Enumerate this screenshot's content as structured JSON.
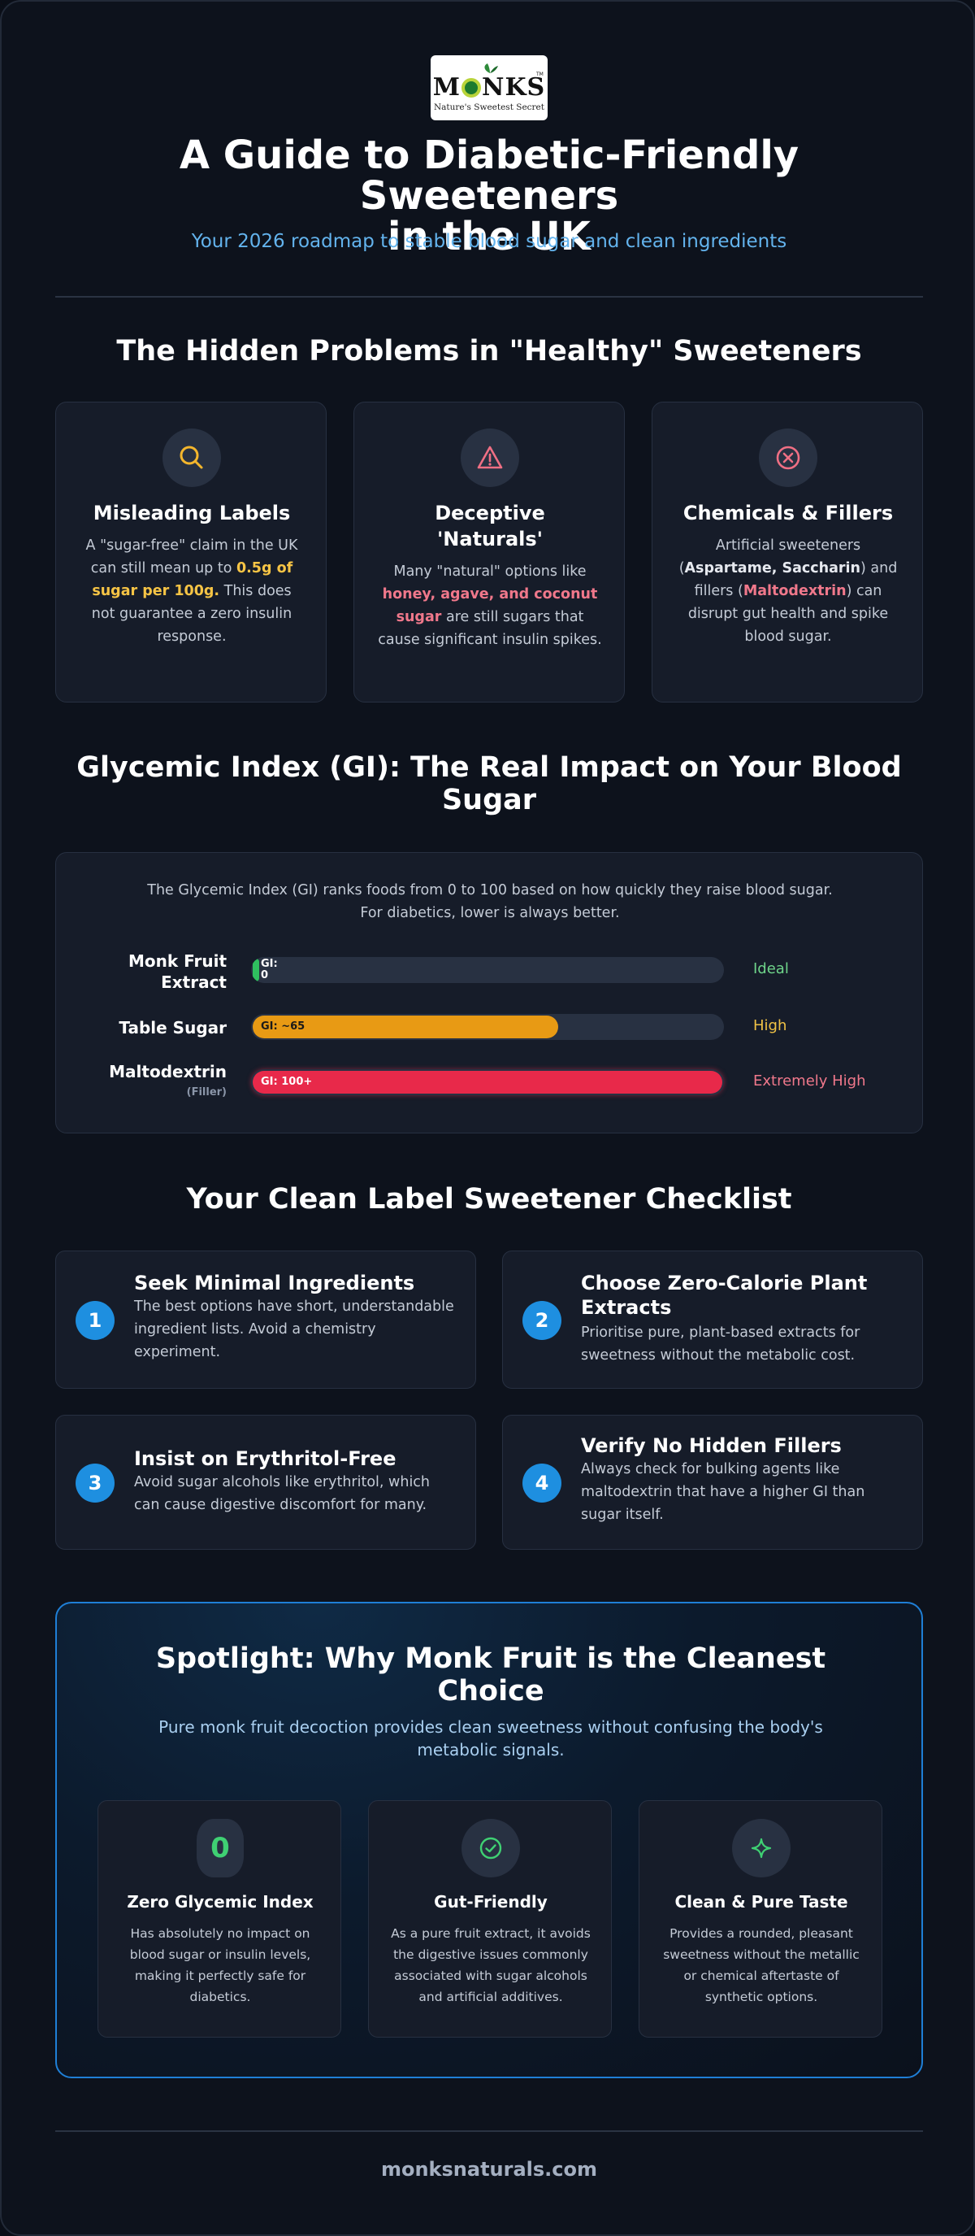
{
  "brand": {
    "logo_word_prefix": "M",
    "logo_word_suffix": "NKS",
    "logo_tm": "TM",
    "logo_tagline": "Nature's Sweetest Secret"
  },
  "header": {
    "title_line1": "A Guide to Diabetic-Friendly Sweeteners",
    "title_line2": "in the UK",
    "subtitle": "Your 2026 roadmap to stable blood sugar and clean ingredients"
  },
  "problems": {
    "title": "The Hidden Problems in \"Healthy\" Sweeteners",
    "cards": [
      {
        "icon": "search-icon",
        "title": "Misleading Labels",
        "text_parts": [
          "A \"sugar-free\" claim in the UK can still mean up to ",
          "0.5g of sugar per 100g.",
          " This does not guarantee a zero insulin response."
        ]
      },
      {
        "icon": "warning-icon",
        "title_line1": "Deceptive",
        "title_line2": "'Naturals'",
        "text_parts": [
          "Many \"natural\" options like ",
          "honey, agave, and coconut sugar",
          " are still sugars that cause significant insulin spikes."
        ]
      },
      {
        "icon": "close-circle-icon",
        "title": "Chemicals & Fillers",
        "text_parts": [
          "Artificial sweeteners (",
          "Aspartame, Saccharin",
          ") and fillers (",
          "Maltodextrin",
          ") can disrupt gut health and spike blood sugar."
        ]
      }
    ]
  },
  "gi": {
    "title_line1": "Glycemic Index (GI): The Real Impact on Your Blood",
    "title_line2": "Sugar",
    "intro_line1": "The Glycemic Index (GI) ranks foods from 0 to 100 based on how quickly they raise blood sugar.",
    "intro_line2": "For diabetics, lower is always better.",
    "rows": [
      {
        "label_line1": "Monk Fruit",
        "label_line2": "Extract",
        "bar_text": "GI: 0",
        "bar_line1": "GI:",
        "bar_line2": "0",
        "fill_fraction": 0.012,
        "color": "#2fbf5f",
        "status": "Ideal",
        "status_color": "#6fd48a"
      },
      {
        "label": "Table Sugar",
        "bar_text": "GI: ~65",
        "fill_fraction": 0.65,
        "color": "#e89a14",
        "status": "High",
        "status_color": "#f0c245"
      },
      {
        "label": "Maltodextrin",
        "sublabel": "(Filler)",
        "bar_text": "GI: 100+",
        "fill_fraction": 1.0,
        "color": "#e8294a",
        "status": "Extremely High",
        "status_color": "#f0788b"
      }
    ]
  },
  "checklist": {
    "title": "Your Clean Label Sweetener Checklist",
    "items": [
      {
        "num": "1",
        "title": "Seek Minimal Ingredients",
        "text": "The best options have short, understandable ingredient lists. Avoid a chemistry experiment."
      },
      {
        "num": "2",
        "title_line1": "Choose Zero-Calorie Plant",
        "title_line2": "Extracts",
        "text": "Prioritise pure, plant-based extracts for sweetness without the metabolic cost."
      },
      {
        "num": "3",
        "title": "Insist on Erythritol-Free",
        "text": "Avoid sugar alcohols like erythritol, which can cause digestive discomfort for many."
      },
      {
        "num": "4",
        "title": "Verify No Hidden Fillers",
        "text": "Always check for bulking agents like maltodextrin that have a higher GI than sugar itself."
      }
    ]
  },
  "spotlight": {
    "title_line1": "Spotlight: Why Monk Fruit is the Cleanest",
    "title_line2": "Choice",
    "subtitle": "Pure monk fruit decoction provides clean sweetness without confusing the body's metabolic signals.",
    "cards": [
      {
        "icon_text": "0",
        "title": "Zero Glycemic Index",
        "text": "Has absolutely no impact on blood sugar or insulin levels, making it perfectly safe for diabetics."
      },
      {
        "icon": "check-circle-icon",
        "title": "Gut-Friendly",
        "text": "As a pure fruit extract, it avoids the digestive issues commonly associated with sugar alcohols and artificial additives."
      },
      {
        "icon": "sparkle-icon",
        "title": "Clean & Pure Taste",
        "text": "Provides a rounded, pleasant sweetness without the metallic or chemical aftertaste of synthetic options."
      }
    ]
  },
  "footer": {
    "text": "monksnaturals.com"
  }
}
